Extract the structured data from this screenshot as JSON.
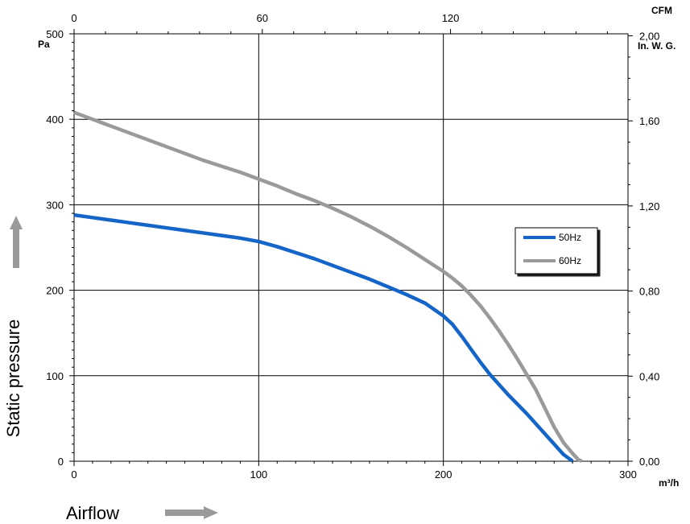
{
  "chart_data": {
    "type": "line",
    "x": [
      0,
      10,
      20,
      30,
      40,
      50,
      60,
      70,
      80,
      90,
      100,
      110,
      120,
      130,
      140,
      150,
      160,
      170,
      180,
      190,
      200,
      205,
      210,
      215,
      220,
      225,
      230,
      235,
      240,
      245,
      250,
      255,
      260,
      265,
      270,
      273,
      275
    ],
    "series": [
      {
        "name": "50Hz",
        "color": "#1565c8",
        "values": [
          288,
          285,
          282,
          279,
          276,
          273,
          270,
          267,
          264,
          261,
          257,
          251,
          244,
          237,
          229,
          221,
          213,
          204,
          195,
          185,
          170,
          160,
          146,
          131,
          116,
          102,
          90,
          78,
          67,
          56,
          44,
          32,
          20,
          8,
          0,
          null,
          null
        ]
      },
      {
        "name": "60Hz",
        "color": "#9a9a9a",
        "values": [
          408,
          400,
          392,
          384,
          376,
          368,
          360,
          352,
          345,
          338,
          330,
          322,
          313,
          305,
          296,
          286,
          275,
          263,
          250,
          236,
          222,
          214,
          205,
          194,
          182,
          168,
          153,
          137,
          120,
          102,
          84,
          62,
          40,
          22,
          9,
          2,
          0
        ]
      }
    ],
    "xlim": [
      0,
      300
    ],
    "ylim": [
      0,
      500
    ],
    "x_ticks": [
      "0",
      "100",
      "200",
      "300"
    ],
    "y_ticks": [
      "0",
      "100",
      "200",
      "300",
      "400",
      "500"
    ],
    "x_top_ticks": [
      "0",
      "60",
      "120"
    ],
    "y_right_ticks": [
      "0,00",
      "0,40",
      "0,80",
      "1,20",
      "1,60",
      "2,00"
    ],
    "x_unit": "m³/h",
    "y_unit": "Pa",
    "x_top_unit": "CFM",
    "y_right_unit": "In. W. G.",
    "xlabel": "Airflow",
    "ylabel": "Static pressure",
    "grid": true,
    "legend_position": "right"
  }
}
